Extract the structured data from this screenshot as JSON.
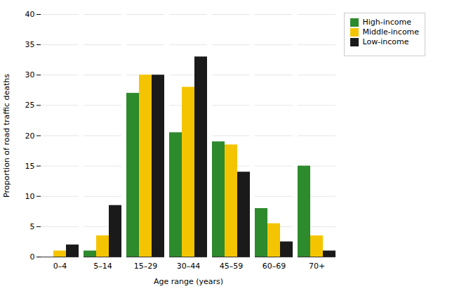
{
  "chart_data": {
    "type": "bar",
    "categories": [
      "0–4",
      "5–14",
      "15–29",
      "30–44",
      "45–59",
      "60–69",
      "70+"
    ],
    "series": [
      {
        "name": "High-income",
        "color": "#2d8a2d",
        "values": [
          0.0,
          1.0,
          27.0,
          20.5,
          19.0,
          8.0,
          15.0
        ]
      },
      {
        "name": "Middle-income",
        "color": "#f5c400",
        "values": [
          1.0,
          3.5,
          30.0,
          28.0,
          18.5,
          5.5,
          3.5
        ]
      },
      {
        "name": "Low-income",
        "color": "#1a1a1a",
        "values": [
          2.0,
          8.5,
          30.0,
          33.0,
          14.0,
          2.5,
          1.0
        ]
      }
    ],
    "xlabel": "Age range (years)",
    "ylabel": "Proportion of road traffic deaths",
    "ylim": [
      0,
      40
    ],
    "yticks": [
      0,
      5,
      10,
      15,
      20,
      25,
      30,
      35,
      40
    ],
    "grid": true,
    "legend": "upper right"
  }
}
